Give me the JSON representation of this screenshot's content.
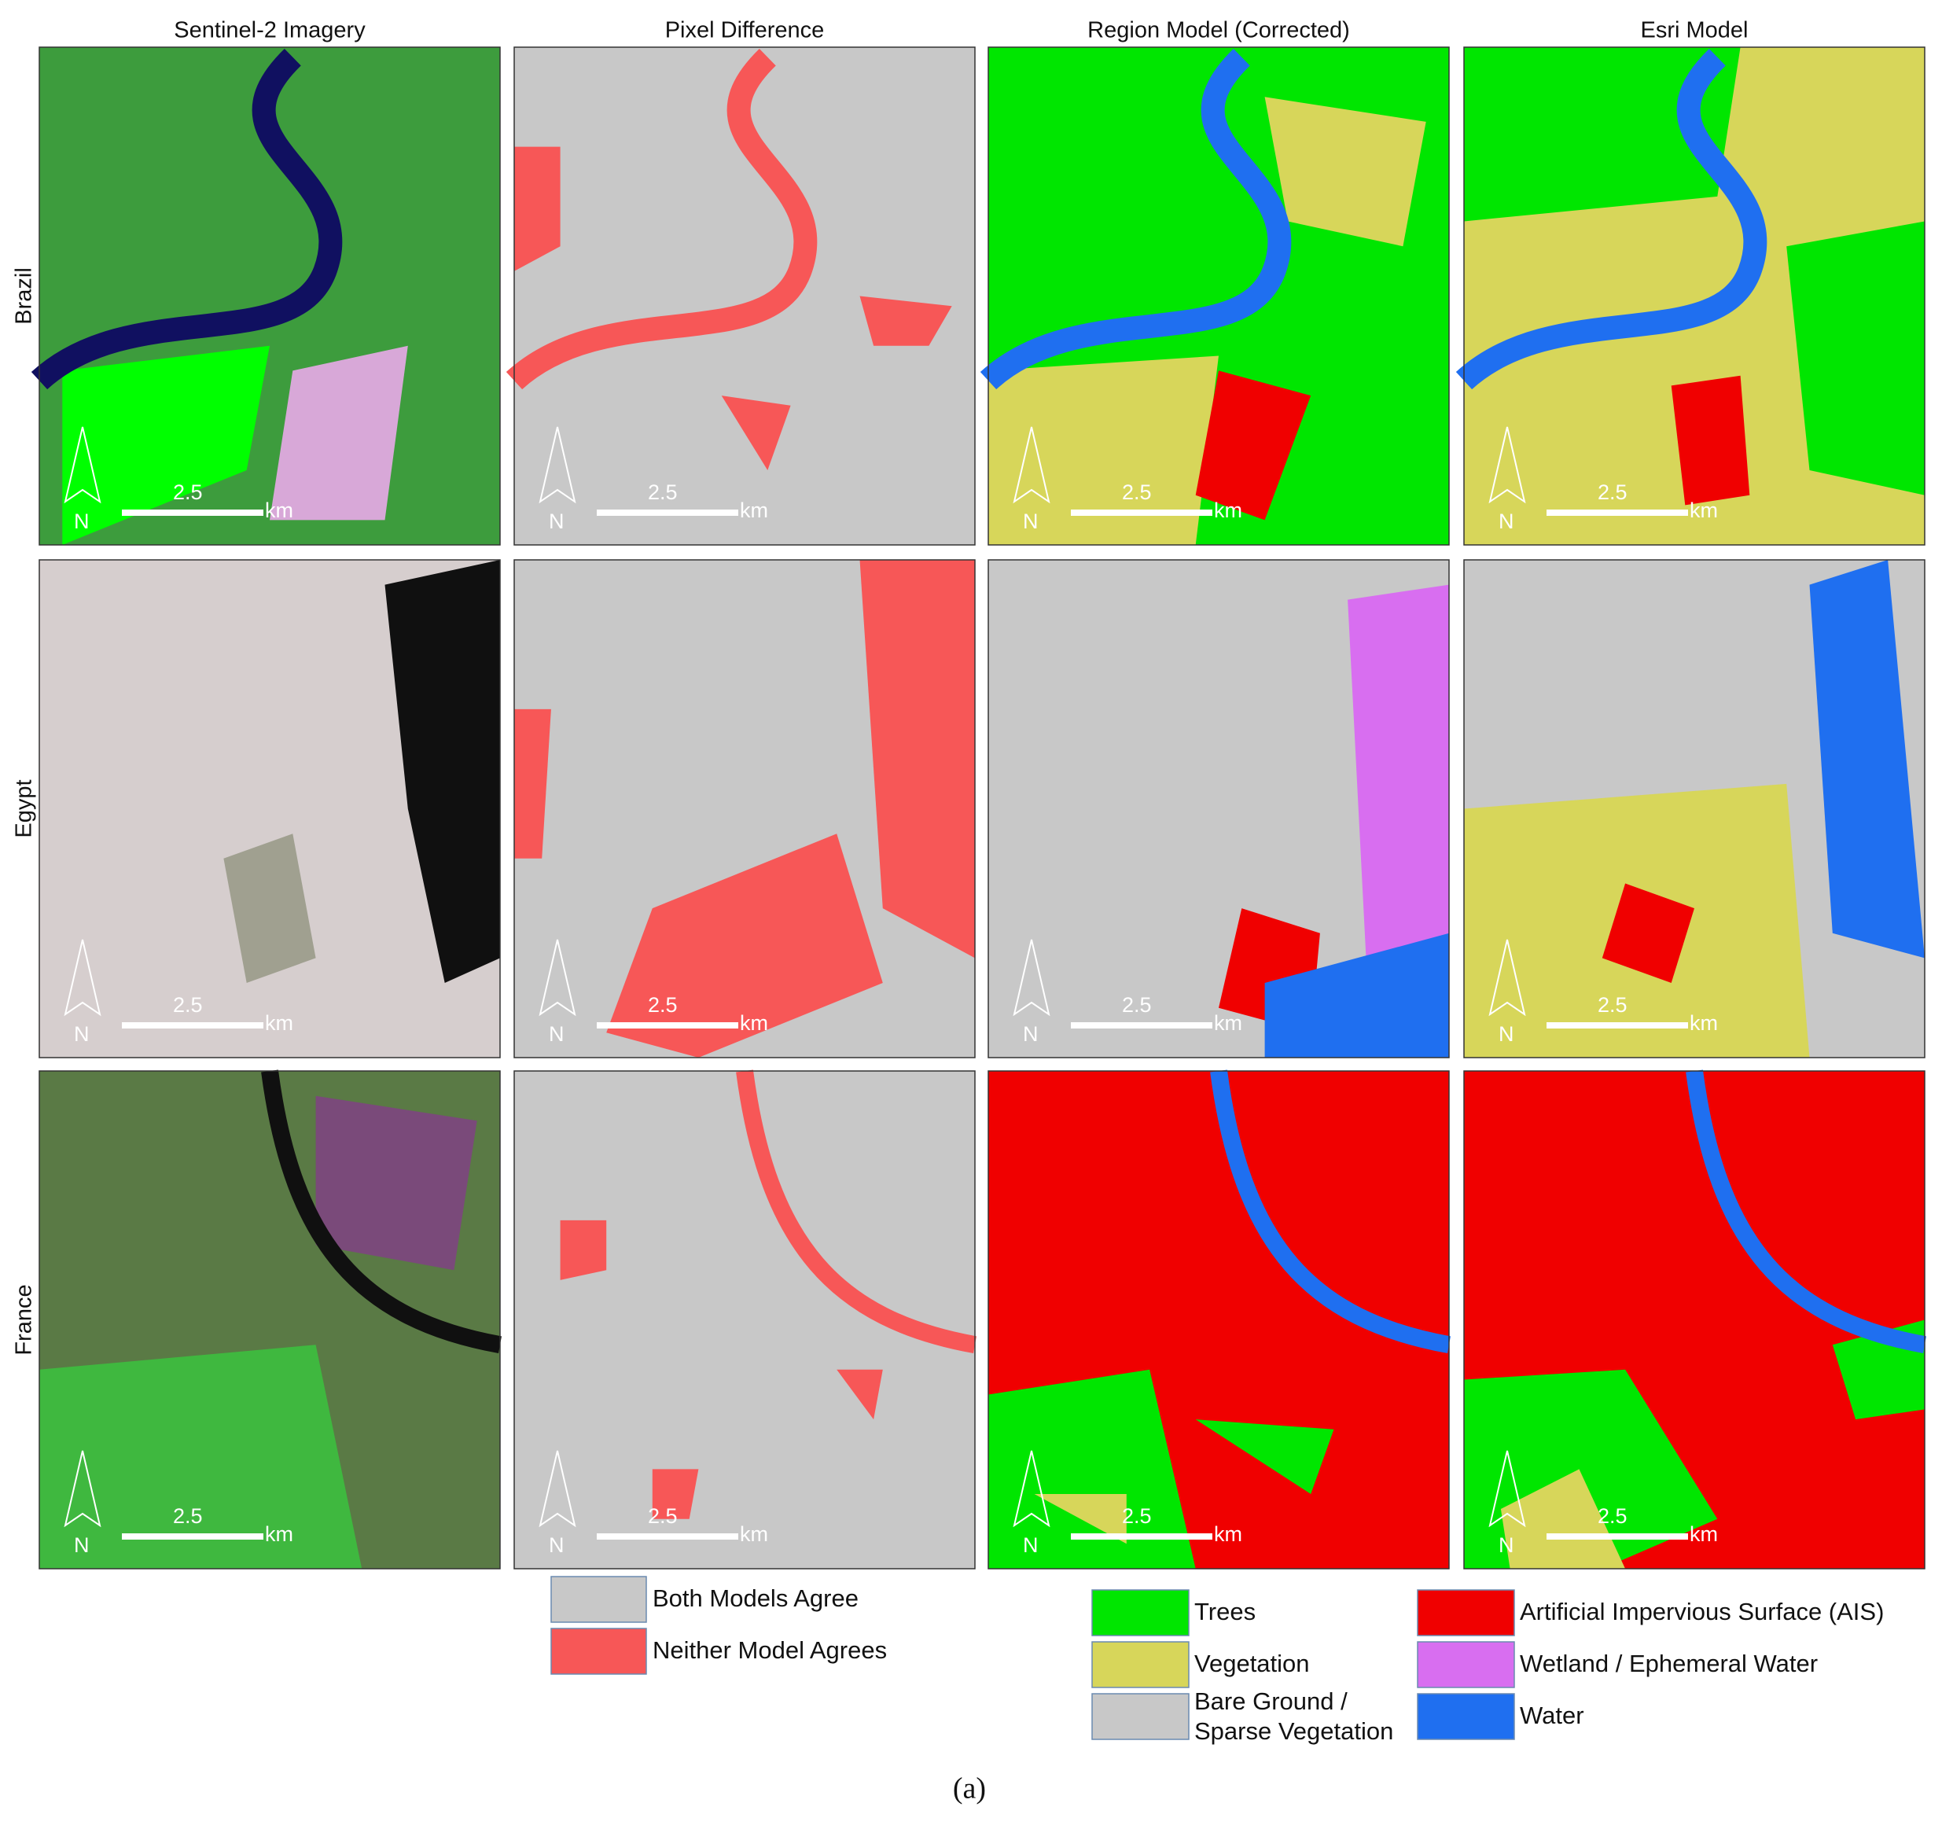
{
  "columns": [
    "Sentinel-2 Imagery",
    "Pixel Difference",
    "Region Model (Corrected)",
    "Esri Model"
  ],
  "rows": [
    "Brazil",
    "Egypt",
    "France"
  ],
  "scale_bar": {
    "distance": "2.5",
    "unit": "km"
  },
  "north_arrow": "N",
  "difference_legend": [
    {
      "label": "Both Models Agree",
      "color": "#c8c8c8"
    },
    {
      "label": "Neither Model Agrees",
      "color": "#f75757"
    }
  ],
  "class_legend": [
    {
      "label": "Trees",
      "color": "#00e600"
    },
    {
      "label": "Vegetation",
      "color": "#d7d65a"
    },
    {
      "label": [
        "Bare Ground /",
        "Sparse Vegetation"
      ],
      "color": "#c8c8c8"
    },
    {
      "label": "Artificial Impervious Surface (AIS)",
      "color": "#f00000"
    },
    {
      "label": "Wetland / Ephemeral Water",
      "color": "#d86ef0"
    },
    {
      "label": "Water",
      "color": "#1f6ff0"
    }
  ],
  "caption": "(a)"
}
